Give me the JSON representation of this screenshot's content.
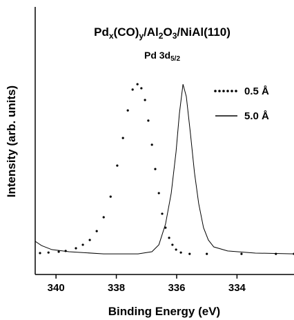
{
  "chart_data": {
    "type": "line",
    "title": [
      "Pd",
      "x",
      "(CO)",
      "y",
      "/Al",
      "2",
      "O",
      "3",
      "/NiAl(110)"
    ],
    "subtitle": [
      "Pd 3d",
      "5/2"
    ],
    "x_label": "Binding Energy (eV)",
    "y_label": "Intensity (arb. units)",
    "xlim": [
      340.69,
      332.11
    ],
    "xticks": [
      340,
      338,
      336,
      334
    ],
    "ylim": [
      0,
      1
    ],
    "legend": "upper right",
    "series": [
      {
        "name": "0.5 Å",
        "color": "#000000",
        "style": "dotted",
        "x": [
          340.53,
          340.25,
          339.91,
          339.68,
          339.34,
          339.11,
          338.88,
          338.65,
          338.42,
          338.19,
          337.97,
          337.78,
          337.62,
          337.46,
          337.3,
          337.17,
          337.05,
          336.94,
          336.82,
          336.71,
          336.59,
          336.48,
          336.37,
          336.25,
          336.14,
          336.02,
          335.86,
          335.57,
          335.0,
          333.85,
          332.71,
          332.11
        ],
        "values": [
          0.08,
          0.082,
          0.085,
          0.088,
          0.098,
          0.111,
          0.129,
          0.162,
          0.214,
          0.291,
          0.407,
          0.51,
          0.613,
          0.691,
          0.711,
          0.696,
          0.652,
          0.575,
          0.485,
          0.394,
          0.304,
          0.227,
          0.175,
          0.137,
          0.111,
          0.093,
          0.082,
          0.077,
          0.077,
          0.077,
          0.077,
          0.077
        ]
      },
      {
        "name": "5.0 Å",
        "color": "#000000",
        "style": "solid",
        "x": [
          340.69,
          340.48,
          340.14,
          339.57,
          338.42,
          337.28,
          336.82,
          336.59,
          336.37,
          336.18,
          336.02,
          335.91,
          335.79,
          335.68,
          335.54,
          335.41,
          335.27,
          335.11,
          334.95,
          334.77,
          334.31,
          333.39,
          332.11
        ],
        "values": [
          0.124,
          0.108,
          0.093,
          0.085,
          0.077,
          0.077,
          0.085,
          0.111,
          0.188,
          0.304,
          0.459,
          0.601,
          0.711,
          0.665,
          0.523,
          0.381,
          0.265,
          0.175,
          0.129,
          0.103,
          0.088,
          0.08,
          0.077
        ]
      }
    ]
  }
}
